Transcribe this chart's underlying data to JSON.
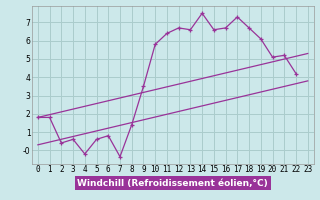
{
  "background_color": "#cce8ea",
  "grid_color": "#aacccc",
  "line_color": "#993399",
  "line1_x": [
    0,
    1,
    2,
    3,
    4,
    5,
    6,
    7,
    8,
    9,
    10,
    11,
    12,
    13,
    14,
    15,
    16,
    17,
    18,
    19,
    20,
    21,
    22
  ],
  "line1_y": [
    1.8,
    1.8,
    0.4,
    0.6,
    -0.2,
    0.6,
    0.8,
    -0.35,
    1.4,
    3.5,
    5.8,
    6.4,
    6.7,
    6.6,
    7.5,
    6.6,
    6.7,
    7.3,
    6.7,
    6.1,
    5.1,
    5.2,
    4.2
  ],
  "line2_x": [
    0,
    23
  ],
  "line2_y": [
    0.3,
    3.8
  ],
  "line3_x": [
    0,
    23
  ],
  "line3_y": [
    1.8,
    5.3
  ],
  "xlim": [
    -0.5,
    23.5
  ],
  "ylim": [
    -0.75,
    7.9
  ],
  "xticks": [
    0,
    1,
    2,
    3,
    4,
    5,
    6,
    7,
    8,
    9,
    10,
    11,
    12,
    13,
    14,
    15,
    16,
    17,
    18,
    19,
    20,
    21,
    22,
    23
  ],
  "yticks": [
    0,
    1,
    2,
    3,
    4,
    5,
    6,
    7
  ],
  "ytick_labels": [
    "-0",
    "1",
    "2",
    "3",
    "4",
    "5",
    "6",
    "7"
  ],
  "xlabel": "Windchill (Refroidissement éolien,°C)",
  "xlabel_fontsize": 6.5,
  "tick_fontsize": 5.5,
  "xlabel_bg_color": "#993399",
  "xlabel_text_color": "#ffffff"
}
